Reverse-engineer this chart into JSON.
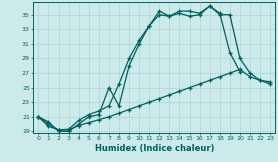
{
  "xlabel": "Humidex (Indice chaleur)",
  "bg_color": "#cceaea",
  "line_color": "#006060",
  "grid_color": "#b0d8d8",
  "ylim": [
    18.8,
    36.8
  ],
  "xlim": [
    -0.5,
    23.5
  ],
  "yticks": [
    19,
    21,
    23,
    25,
    27,
    29,
    31,
    33,
    35
  ],
  "xticks": [
    0,
    1,
    2,
    3,
    4,
    5,
    6,
    7,
    8,
    9,
    10,
    11,
    12,
    13,
    14,
    15,
    16,
    17,
    18,
    19,
    20,
    21,
    22,
    23
  ],
  "line1_x": [
    0,
    1,
    2,
    3,
    4,
    5,
    6,
    7,
    8,
    9,
    10,
    11,
    12,
    13,
    14,
    15,
    16,
    17,
    18,
    19,
    20,
    21,
    22,
    23
  ],
  "line1_y": [
    21,
    20.3,
    19,
    19,
    20,
    21,
    21.3,
    25,
    22.5,
    28,
    31,
    33.5,
    35,
    34.8,
    35.2,
    34.8,
    35,
    36.2,
    35,
    35,
    29,
    27,
    26,
    25.5
  ],
  "line2_x": [
    0,
    1,
    2,
    3,
    4,
    5,
    6,
    7,
    8,
    9,
    10,
    11,
    12,
    13,
    14,
    15,
    16,
    17,
    18,
    19,
    20
  ],
  "line2_y": [
    21,
    20,
    19.2,
    19.3,
    20.5,
    21.3,
    21.8,
    22.5,
    25.5,
    29,
    31.5,
    33.5,
    35.5,
    34.8,
    35.5,
    35.5,
    35.2,
    36.2,
    35.2,
    29.8,
    27.2
  ],
  "line3_x": [
    0,
    1,
    2,
    3,
    4,
    5,
    6,
    7,
    8,
    9,
    10,
    11,
    12,
    13,
    14,
    15,
    16,
    17,
    18,
    19,
    20,
    21,
    22,
    23
  ],
  "line3_y": [
    21,
    19.7,
    19.2,
    19.2,
    19.8,
    20.2,
    20.6,
    21.0,
    21.5,
    22.0,
    22.5,
    23.0,
    23.5,
    24.0,
    24.5,
    25.0,
    25.5,
    26.0,
    26.5,
    27.0,
    27.5,
    26.5,
    26.0,
    25.8
  ]
}
